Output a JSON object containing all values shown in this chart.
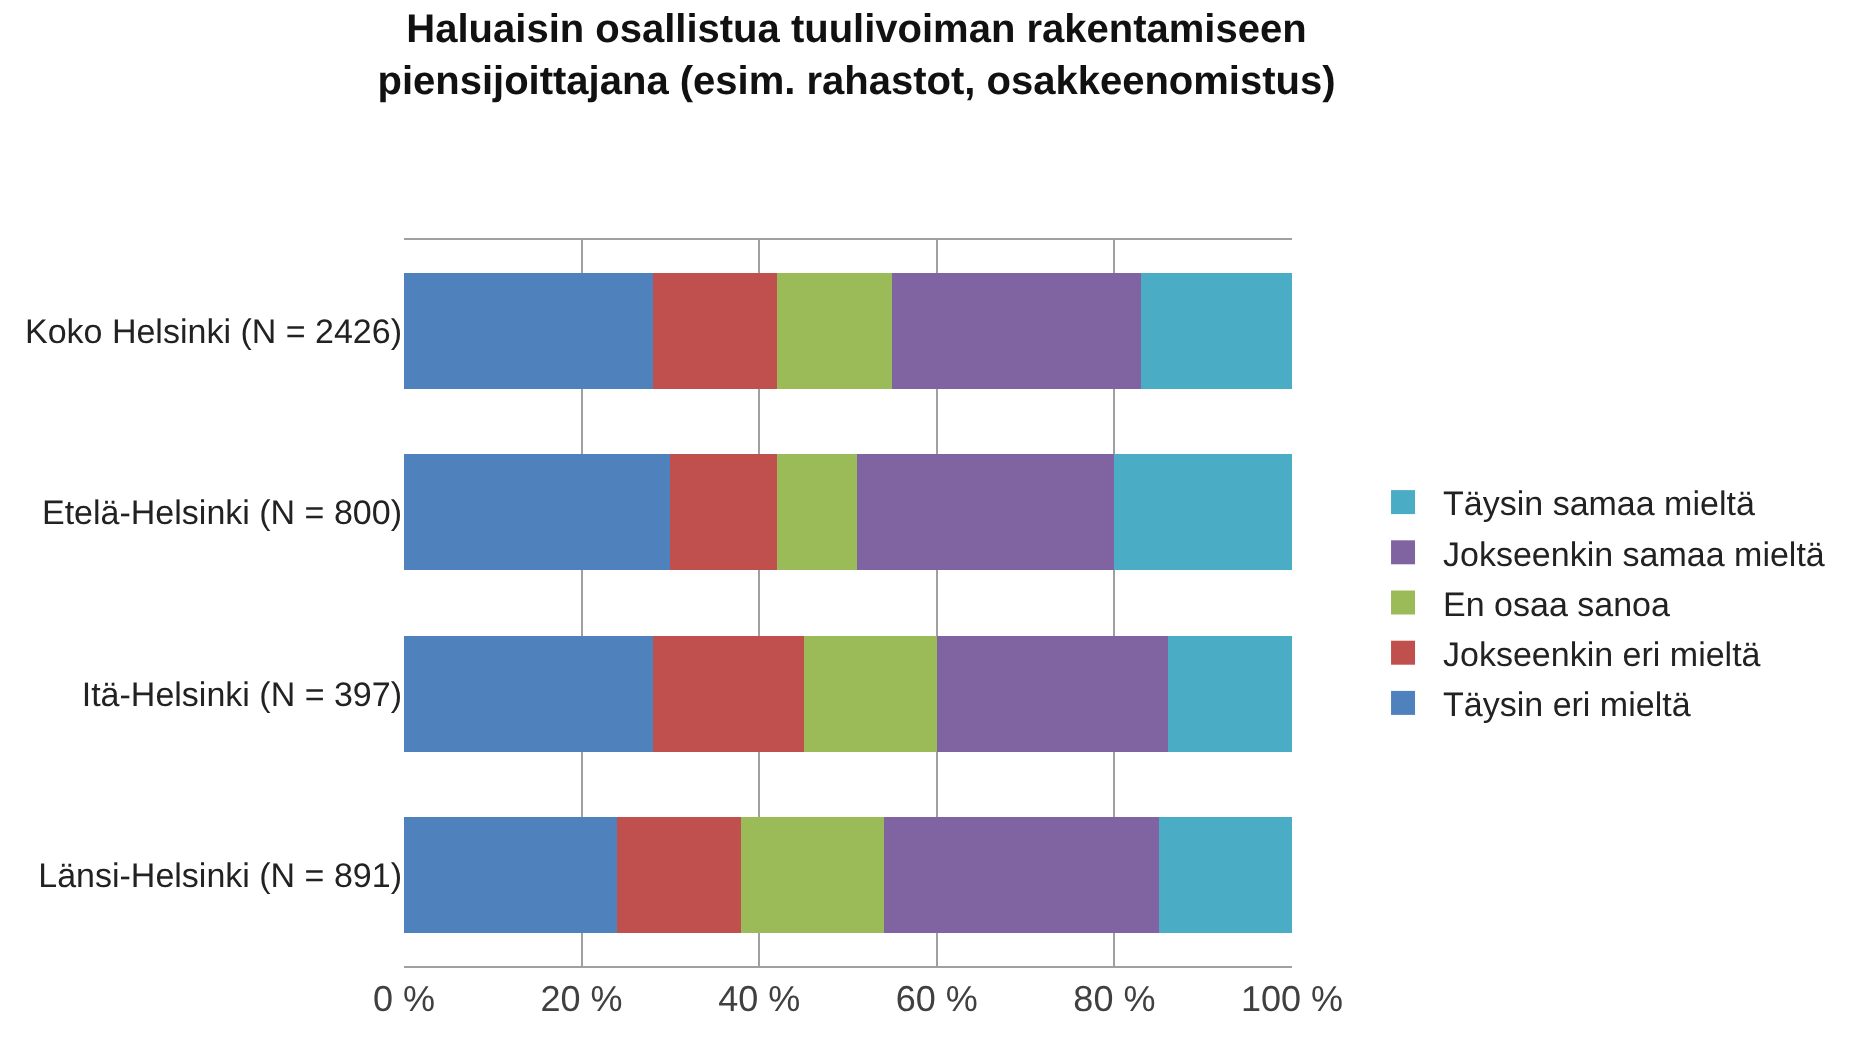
{
  "chart_data": {
    "type": "bar",
    "orientation": "horizontal",
    "stacked": true,
    "title": "Haluaisin osallistua tuulivoiman rakentamiseen\npiensijoittajana (esim. rahastot, osakkeenomistus)",
    "categories": [
      "Koko Helsinki (N = 2426)",
      "Etelä-Helsinki (N = 800)",
      "Itä-Helsinki (N = 397)",
      "Länsi-Helsinki (N = 891)"
    ],
    "series": [
      {
        "name": "Täysin eri mieltä",
        "color": "#4f81bd",
        "values": [
          28,
          30,
          28,
          24
        ]
      },
      {
        "name": "Jokseenkin eri mieltä",
        "color": "#c0504d",
        "values": [
          14,
          12,
          17,
          14
        ]
      },
      {
        "name": "En osaa sanoa",
        "color": "#9bbb59",
        "values": [
          13,
          9,
          15,
          16
        ]
      },
      {
        "name": "Jokseenkin samaa mieltä",
        "color": "#8064a2",
        "values": [
          28,
          29,
          26,
          31
        ]
      },
      {
        "name": "Täysin samaa mieltä",
        "color": "#4bacc6",
        "values": [
          17,
          20,
          14,
          15
        ]
      }
    ],
    "xlim": [
      0,
      100
    ],
    "xticks": [
      {
        "value": 0,
        "label": "0 %"
      },
      {
        "value": 20,
        "label": "20 %"
      },
      {
        "value": 40,
        "label": "40 %"
      },
      {
        "value": 60,
        "label": "60 %"
      },
      {
        "value": 80,
        "label": "80 %"
      },
      {
        "value": 100,
        "label": "100 %"
      }
    ],
    "grid": "x",
    "legend": "right"
  }
}
